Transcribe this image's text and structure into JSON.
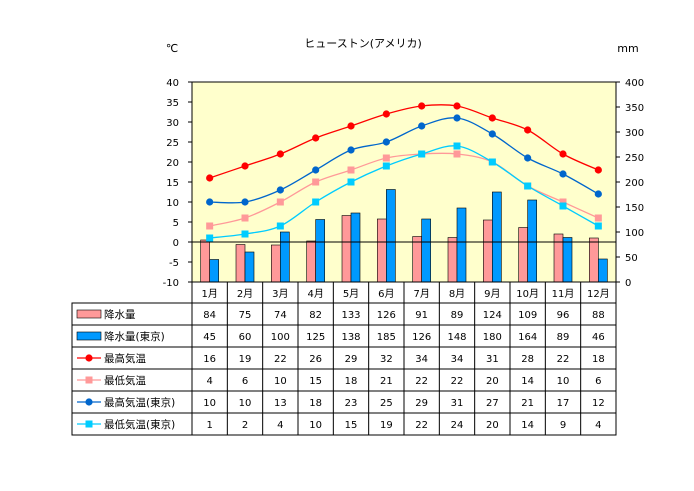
{
  "chart_data": {
    "type": "combo-bar-line-table",
    "title": "ヒューストン(アメリカ)",
    "left_axis_unit": "℃",
    "right_axis_unit": "mm",
    "left_ylim": [
      -10,
      40
    ],
    "left_ticks": [
      "40",
      "35",
      "30",
      "25",
      "20",
      "15",
      "10",
      "5",
      "0",
      "-5",
      "-10"
    ],
    "right_ylim": [
      0,
      400
    ],
    "right_ticks": [
      "400",
      "350",
      "300",
      "250",
      "200",
      "150",
      "100",
      "50",
      "0"
    ],
    "categories": [
      "1月",
      "2月",
      "3月",
      "4月",
      "5月",
      "6月",
      "7月",
      "8月",
      "9月",
      "10月",
      "11月",
      "12月"
    ],
    "plot_background": "#ffffcc",
    "series": [
      {
        "name": "降水量",
        "kind": "bar",
        "axis": "right",
        "color": "#ff9999",
        "values": [
          84,
          75,
          74,
          82,
          133,
          126,
          91,
          89,
          124,
          109,
          96,
          88
        ]
      },
      {
        "name": "降水量(東京)",
        "kind": "bar",
        "axis": "right",
        "color": "#0099ff",
        "values": [
          45,
          60,
          100,
          125,
          138,
          185,
          126,
          148,
          180,
          164,
          89,
          46
        ]
      },
      {
        "name": "最高気温",
        "kind": "line",
        "axis": "left",
        "color": "#ff0000",
        "marker": "circle",
        "values": [
          16,
          19,
          22,
          26,
          29,
          32,
          34,
          34,
          31,
          28,
          22,
          18
        ]
      },
      {
        "name": "最低気温",
        "kind": "line",
        "axis": "left",
        "color": "#ff9999",
        "marker": "square",
        "values": [
          4,
          6,
          10,
          15,
          18,
          21,
          22,
          22,
          20,
          14,
          10,
          6
        ]
      },
      {
        "name": "最高気温(東京)",
        "kind": "line",
        "axis": "left",
        "color": "#0066cc",
        "marker": "circle",
        "values": [
          10,
          10,
          13,
          18,
          23,
          25,
          29,
          31,
          27,
          21,
          17,
          12
        ]
      },
      {
        "name": "最低気温(東京)",
        "kind": "line",
        "axis": "left",
        "color": "#00ccff",
        "marker": "square",
        "values": [
          1,
          2,
          4,
          10,
          15,
          19,
          22,
          24,
          20,
          14,
          9,
          4
        ]
      }
    ]
  }
}
